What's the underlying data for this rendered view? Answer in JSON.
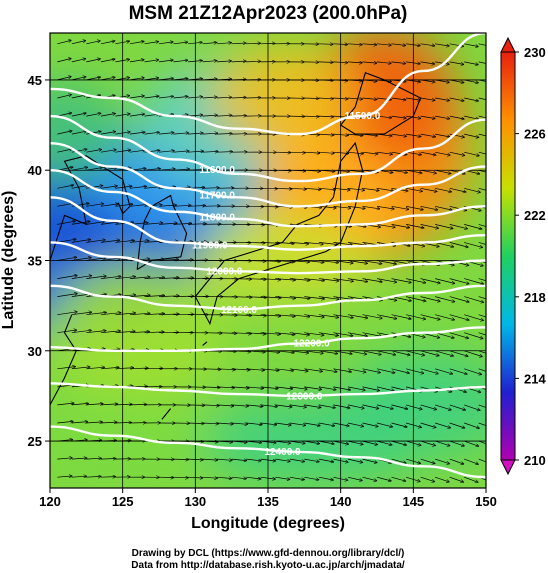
{
  "chart_data": {
    "type": "heatmap",
    "title": "MSM 21Z12Apr2023 (200.0hPa)",
    "xlabel": "Longitude (degrees)",
    "ylabel": "Latitude  (degrees)",
    "xlim": [
      120,
      150
    ],
    "ylim": [
      22.4,
      47.6
    ],
    "x_ticks": [
      120,
      125,
      130,
      135,
      140,
      145,
      150
    ],
    "y_ticks": [
      25,
      30,
      35,
      40,
      45
    ],
    "colorbar": {
      "range": [
        210,
        230
      ],
      "ticks": [
        210,
        214,
        218,
        222,
        226,
        230
      ],
      "colors": [
        "#b000b0",
        "#2020d0",
        "#00b8e8",
        "#20d060",
        "#c8e000",
        "#ff9000",
        "#e82010"
      ]
    },
    "contours": [
      {
        "label": "11500.0",
        "lat": [
          44.5,
          44.0,
          43.0,
          42.3,
          42.0,
          43.0,
          45.5,
          47.6
        ]
      },
      {
        "label": "11600.0",
        "lat": [
          43.0,
          41.8,
          40.6,
          39.8,
          39.4,
          39.8,
          41.2,
          42.8
        ]
      },
      {
        "label": "11700.0",
        "lat": [
          41.5,
          40.2,
          39.0,
          38.5,
          38.0,
          38.3,
          39.2,
          40.2
        ]
      },
      {
        "label": "11800.0",
        "lat": [
          40.0,
          38.8,
          37.7,
          37.3,
          36.9,
          37.0,
          37.5,
          38.0
        ]
      },
      {
        "label": "11900.0",
        "lat": [
          38.5,
          37.2,
          36.0,
          35.8,
          35.6,
          35.8,
          36.0,
          36.4
        ]
      },
      {
        "label": "12000.0",
        "lat": [
          36.0,
          35.2,
          34.6,
          34.4,
          34.3,
          34.4,
          34.8,
          35.0
        ]
      },
      {
        "label": "12100.0",
        "lat": [
          33.6,
          33.0,
          32.5,
          32.3,
          32.5,
          32.8,
          33.2,
          33.6
        ]
      },
      {
        "label": "12200.0",
        "lat": [
          30.2,
          30.0,
          30.0,
          30.1,
          30.4,
          30.7,
          31.0,
          31.3
        ]
      },
      {
        "label": "12300.0",
        "lat": [
          28.2,
          28.0,
          27.8,
          27.6,
          27.5,
          27.6,
          27.8,
          28.0
        ]
      },
      {
        "label": "12400.0",
        "lat": [
          25.8,
          25.3,
          24.9,
          24.6,
          24.4,
          24.1,
          23.6,
          23.0
        ]
      }
    ],
    "contour_label_lon": [
      141.5,
      131.5,
      131.5,
      131.5,
      131.0,
      132.0,
      133.0,
      138.0,
      137.5,
      136.0
    ],
    "contour_x": [
      120,
      124.3,
      128.6,
      132.9,
      137.1,
      141.4,
      145.7,
      150
    ]
  },
  "credits": {
    "line1": "Drawing by DCL (https://www.gfd-dennou.org/library/dcl/)",
    "line2": "Data from http://database.rish.kyoto-u.ac.jp/arch/jmadata/"
  }
}
